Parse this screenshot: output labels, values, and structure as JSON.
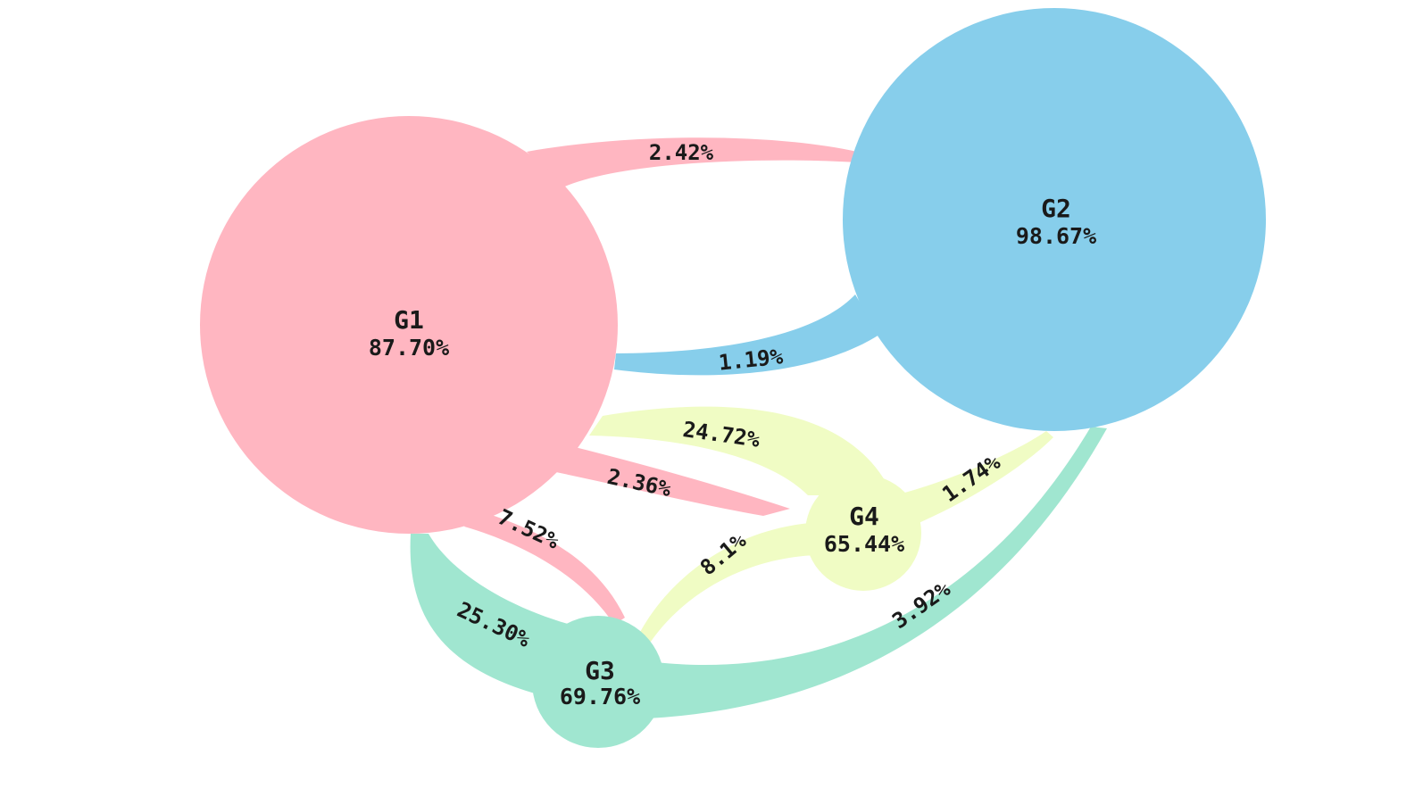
{
  "colors": {
    "G1": "#FFB6C1",
    "G2": "#87CEEB",
    "G3": "#A0E6D0",
    "G4": "#F0FCC4"
  },
  "nodes": {
    "G1": {
      "name": "G1",
      "value": "87.70%"
    },
    "G2": {
      "name": "G2",
      "value": "98.67%"
    },
    "G3": {
      "name": "G3",
      "value": "69.76%"
    },
    "G4": {
      "name": "G4",
      "value": "65.44%"
    }
  },
  "flows": {
    "g1_g2": {
      "from": "G1",
      "to": "G2",
      "label": "2.42%"
    },
    "g2_g1": {
      "from": "G2",
      "to": "G1",
      "label": "1.19%"
    },
    "g4_g1": {
      "from": "G4",
      "to": "G1",
      "label": "24.72%"
    },
    "g1_g4": {
      "from": "G1",
      "to": "G4",
      "label": "2.36%"
    },
    "g1_g3": {
      "from": "G1",
      "to": "G3",
      "label": "7.52%"
    },
    "g3_g1": {
      "from": "G3",
      "to": "G1",
      "label": "25.30%"
    },
    "g4_g3": {
      "from": "G4",
      "to": "G3",
      "label": "8.1%"
    },
    "g4_g2": {
      "from": "G4",
      "to": "G2",
      "label": "1.74%"
    },
    "g3_g2": {
      "from": "G3",
      "to": "G2",
      "label": "3.92%"
    }
  }
}
